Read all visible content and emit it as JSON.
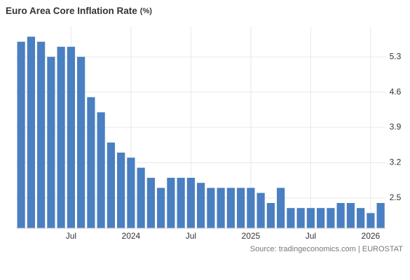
{
  "chart_data": {
    "type": "bar",
    "title": "Euro Area Core Inflation Rate",
    "unit": "(%)",
    "source": "Source: tradingeconomics.com | EUROSTAT",
    "categories": [
      null,
      null,
      null,
      null,
      null,
      "Jul",
      null,
      null,
      null,
      null,
      null,
      "2024",
      null,
      null,
      null,
      null,
      null,
      "Jul",
      null,
      null,
      null,
      null,
      null,
      "2025",
      null,
      null,
      null,
      null,
      null,
      "Jul",
      null,
      null,
      null,
      null,
      null,
      "2026",
      null
    ],
    "values": [
      5.6,
      5.7,
      5.6,
      5.3,
      5.5,
      5.5,
      5.3,
      4.5,
      4.2,
      3.6,
      3.4,
      3.3,
      3.1,
      2.9,
      2.7,
      2.9,
      2.9,
      2.9,
      2.8,
      2.7,
      2.7,
      2.7,
      2.7,
      2.7,
      2.6,
      2.4,
      2.7,
      2.3,
      2.3,
      2.3,
      2.3,
      2.3,
      2.4,
      2.4,
      2.3,
      2.2,
      2.4
    ],
    "color": "#4a7fc1",
    "ylim": [
      1.9,
      5.9
    ],
    "yticks": [
      2.5,
      3.2,
      3.9,
      4.6,
      5.3
    ],
    "grid": true,
    "yaxis_side": "right"
  }
}
